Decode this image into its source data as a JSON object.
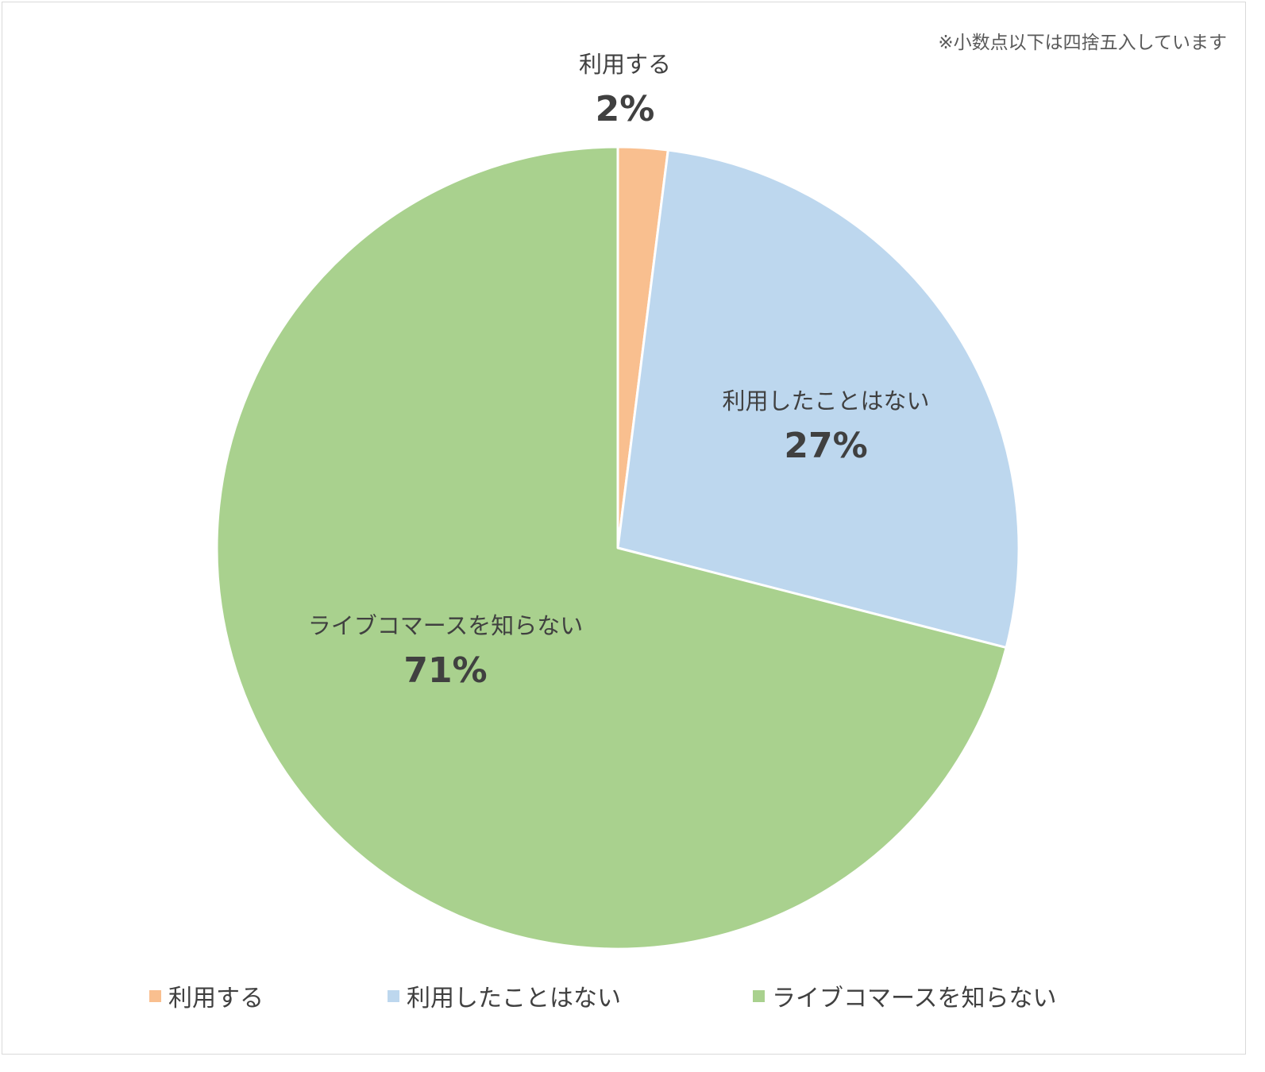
{
  "chart_data": {
    "type": "pie",
    "note": "※小数点以下は四捨五入しています",
    "slices": [
      {
        "label": "利用する",
        "value": 2,
        "value_label": "2%",
        "color": "#f9bf8f"
      },
      {
        "label": "利用したことはない",
        "value": 27,
        "value_label": "27%",
        "color": "#bdd7ee"
      },
      {
        "label": "ライブコマースを知らない",
        "value": 71,
        "value_label": "71%",
        "color": "#a9d18e"
      }
    ],
    "start_angle": "12 o'clock",
    "direction": "clockwise",
    "legend_position": "bottom"
  }
}
